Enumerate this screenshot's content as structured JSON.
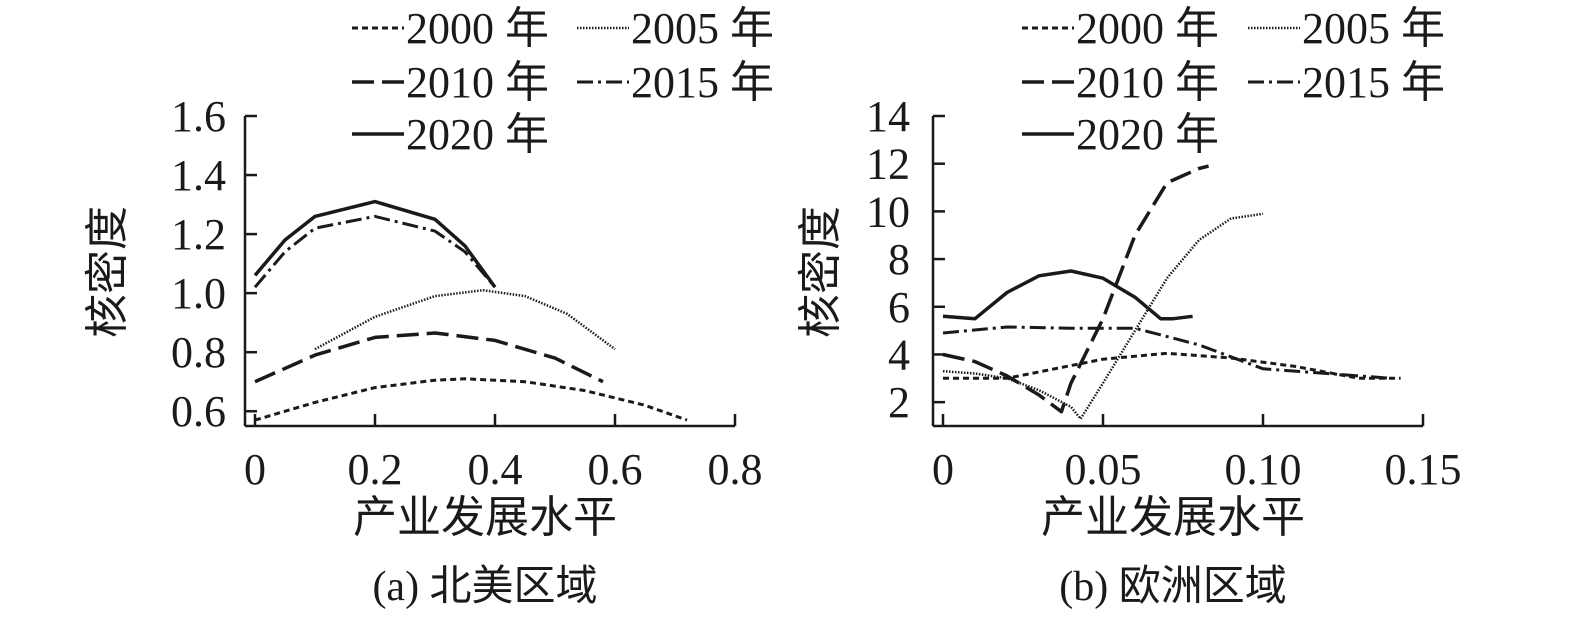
{
  "chart_data": [
    {
      "type": "line",
      "caption": "(a) 北美区域",
      "xlabel": "产业发展水平",
      "ylabel": "核密度",
      "xlim": [
        0,
        0.8
      ],
      "ylim": [
        0.55,
        1.6
      ],
      "x_ticks": [
        0,
        0.2,
        0.4,
        0.6,
        0.8
      ],
      "x_tick_labels": [
        "0",
        "0.2",
        "0.4",
        "0.6",
        "0.8"
      ],
      "y_ticks": [
        0.6,
        0.8,
        1.0,
        1.2,
        1.4,
        1.6
      ],
      "y_tick_labels": [
        "0.6",
        "0.8",
        "1.0",
        "1.2",
        "1.4",
        "1.6"
      ],
      "legend": [
        "2000 年",
        "2005 年",
        "2010 年",
        "2015 年",
        "2020 年"
      ],
      "series": [
        {
          "name": "2000 年",
          "style": "short-dash",
          "x": [
            0,
            0.1,
            0.2,
            0.3,
            0.35,
            0.45,
            0.55,
            0.65,
            0.72
          ],
          "y": [
            0.57,
            0.63,
            0.68,
            0.705,
            0.71,
            0.7,
            0.67,
            0.62,
            0.57
          ]
        },
        {
          "name": "2005 年",
          "style": "fine-dot",
          "x": [
            0.1,
            0.2,
            0.3,
            0.38,
            0.45,
            0.52,
            0.6
          ],
          "y": [
            0.81,
            0.92,
            0.99,
            1.01,
            0.99,
            0.93,
            0.81
          ]
        },
        {
          "name": "2010 年",
          "style": "long-dash",
          "x": [
            0,
            0.1,
            0.2,
            0.3,
            0.4,
            0.5,
            0.58
          ],
          "y": [
            0.7,
            0.79,
            0.85,
            0.865,
            0.84,
            0.78,
            0.7
          ]
        },
        {
          "name": "2015 年",
          "style": "dash-dot",
          "x": [
            0,
            0.05,
            0.1,
            0.2,
            0.3,
            0.35,
            0.4
          ],
          "y": [
            1.02,
            1.14,
            1.22,
            1.26,
            1.21,
            1.14,
            1.02
          ]
        },
        {
          "name": "2020 年",
          "style": "solid",
          "x": [
            0,
            0.05,
            0.1,
            0.2,
            0.3,
            0.35,
            0.4
          ],
          "y": [
            1.06,
            1.18,
            1.26,
            1.31,
            1.25,
            1.16,
            1.02
          ]
        }
      ]
    },
    {
      "type": "line",
      "caption": "(b) 欧洲区域",
      "xlabel": "产业发展水平",
      "ylabel": "核密度",
      "xlim": [
        0,
        0.15
      ],
      "ylim": [
        1,
        14
      ],
      "x_ticks": [
        0,
        0.05,
        0.1,
        0.15
      ],
      "x_tick_labels": [
        "0",
        "0.05",
        "0.10",
        "0.15"
      ],
      "y_ticks": [
        2,
        4,
        6,
        8,
        10,
        12,
        14
      ],
      "y_tick_labels": [
        "2",
        "4",
        "6",
        "8",
        "10",
        "12",
        "14"
      ],
      "legend": [
        "2000 年",
        "2005 年",
        "2010 年",
        "2015 年",
        "2020 年"
      ],
      "series": [
        {
          "name": "2000 年",
          "style": "short-dash",
          "x": [
            0,
            0.02,
            0.05,
            0.07,
            0.09,
            0.11,
            0.13,
            0.143
          ],
          "y": [
            3.0,
            3.0,
            3.8,
            4.05,
            3.85,
            3.5,
            3.0,
            3.0
          ]
        },
        {
          "name": "2005 年",
          "style": "fine-dot",
          "x": [
            0,
            0.01,
            0.02,
            0.03,
            0.04,
            0.043,
            0.05,
            0.06,
            0.07,
            0.08,
            0.09,
            0.1
          ],
          "y": [
            3.3,
            3.2,
            3.0,
            2.5,
            1.8,
            1.3,
            2.8,
            5.0,
            7.2,
            8.8,
            9.7,
            9.9
          ]
        },
        {
          "name": "2010 年",
          "style": "long-dash",
          "x": [
            0,
            0.01,
            0.02,
            0.03,
            0.037,
            0.04,
            0.05,
            0.06,
            0.07,
            0.08,
            0.083
          ],
          "y": [
            4.0,
            3.7,
            3.1,
            2.3,
            1.6,
            2.8,
            5.5,
            9.0,
            11.2,
            11.8,
            11.9
          ]
        },
        {
          "name": "2015 年",
          "style": "dash-dot",
          "x": [
            0,
            0.02,
            0.04,
            0.06,
            0.08,
            0.1,
            0.12,
            0.14
          ],
          "y": [
            4.9,
            5.15,
            5.1,
            5.1,
            4.4,
            3.4,
            3.2,
            3.0
          ]
        },
        {
          "name": "2020 年",
          "style": "solid",
          "x": [
            0,
            0.01,
            0.02,
            0.03,
            0.04,
            0.05,
            0.06,
            0.068,
            0.072,
            0.078
          ],
          "y": [
            5.6,
            5.5,
            6.6,
            7.3,
            7.5,
            7.2,
            6.4,
            5.5,
            5.5,
            5.6
          ]
        }
      ]
    }
  ]
}
